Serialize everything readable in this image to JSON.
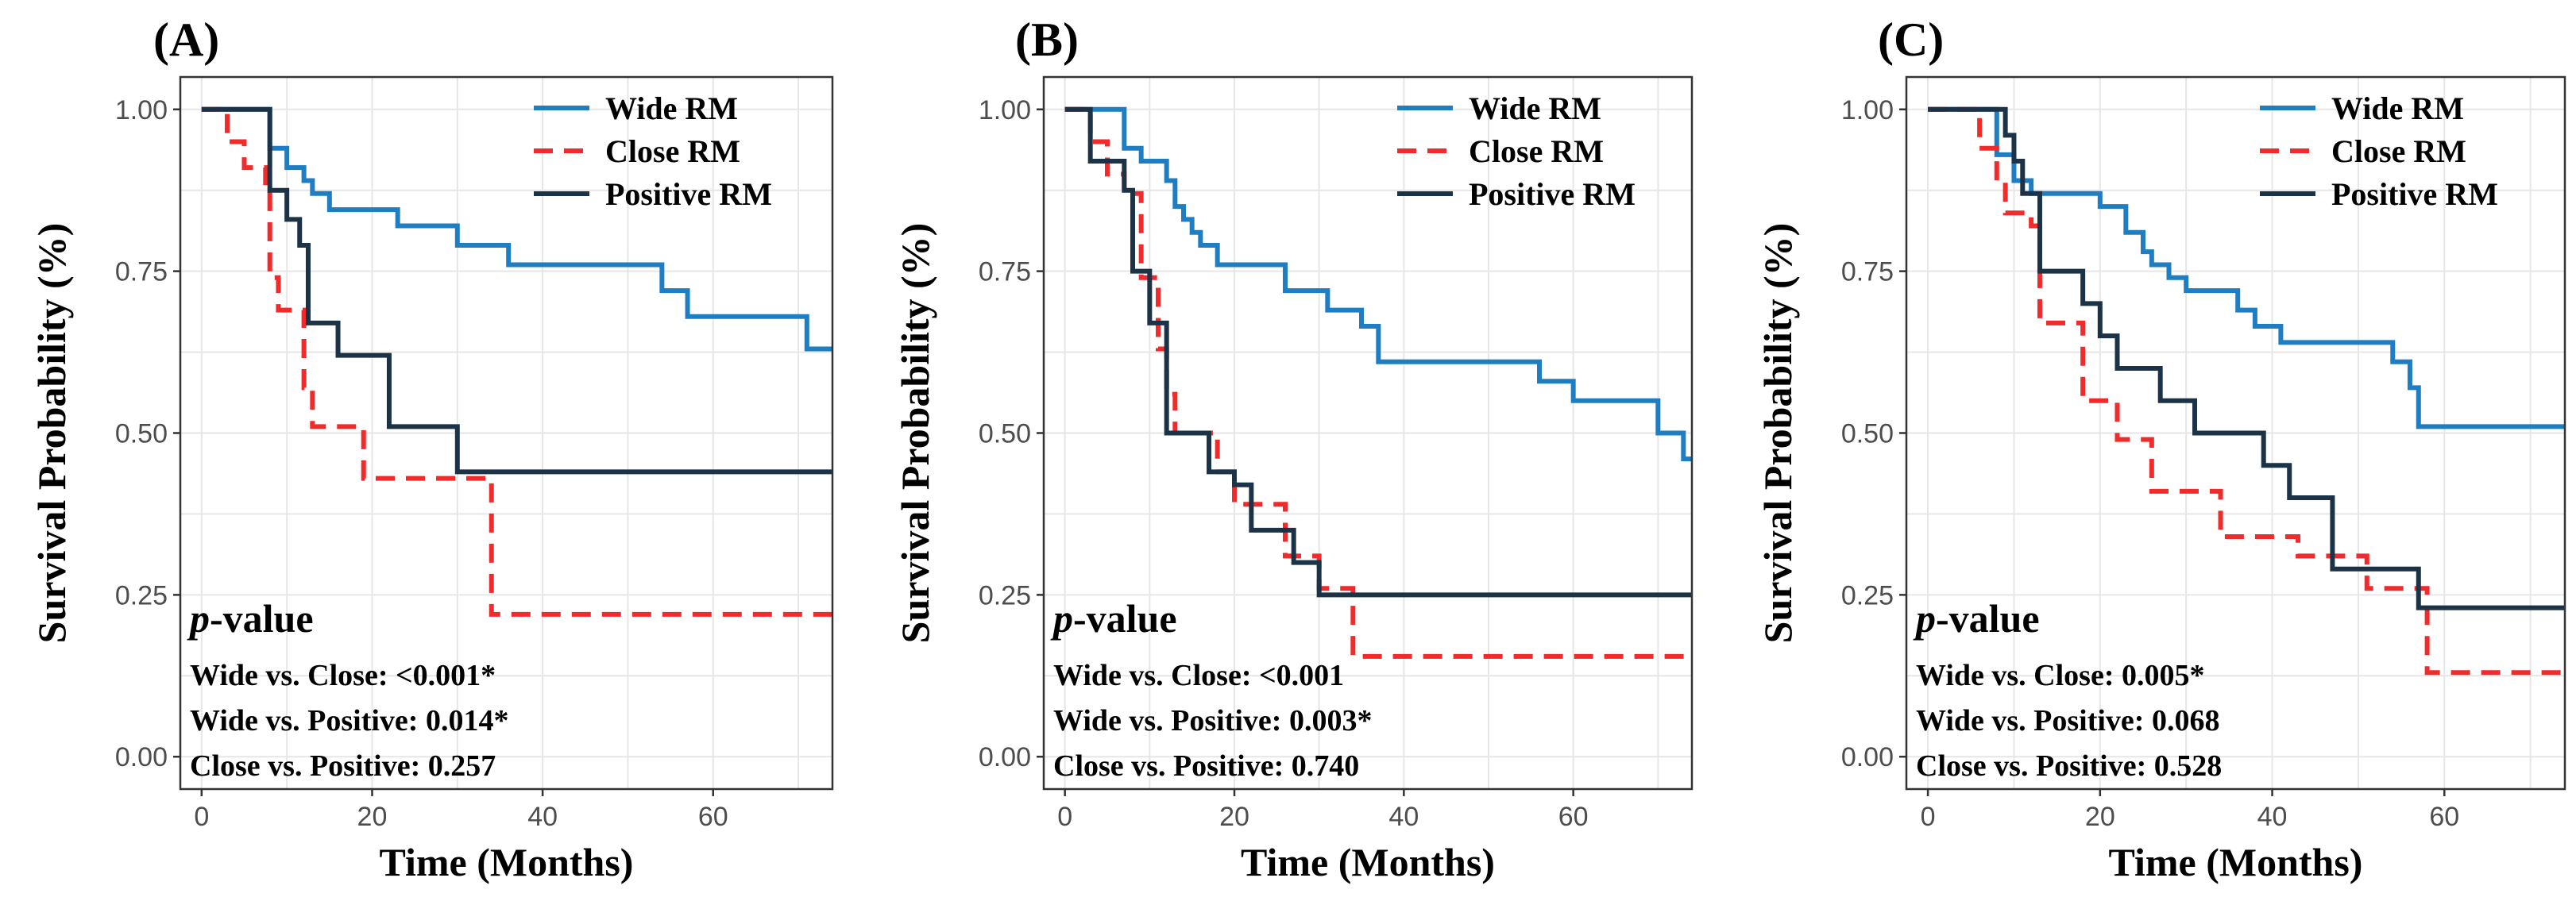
{
  "colors": {
    "wide": "#1f7dc1",
    "close": "#ef2b2b",
    "positive": "#1c3246"
  },
  "chart_data": [
    {
      "type": "line",
      "panel": "(A)",
      "xlabel": "Time (Months)",
      "ylabel": "Survival Probability (%)",
      "xlim": [
        -2.5,
        74
      ],
      "ylim": [
        -0.05,
        1.05
      ],
      "xticks": [
        "0",
        "20",
        "40",
        "60"
      ],
      "yticks": [
        "0.00",
        "0.25",
        "0.50",
        "0.75",
        "1.00"
      ],
      "legend": [
        "Wide RM",
        "Close RM",
        "Positive RM"
      ],
      "pvalue_title": "-value",
      "pvalue_title_italic": "p",
      "pvalues": [
        "Wide vs. Close: <0.001*",
        "Wide vs. Positive: 0.014*",
        "Close vs. Positive: 0.257"
      ],
      "series": [
        {
          "name": "Wide RM",
          "style": "solid",
          "x": [
            0,
            8,
            10,
            12,
            13,
            15,
            23,
            30,
            36,
            54,
            57,
            71,
            74
          ],
          "y": [
            1.0,
            0.94,
            0.91,
            0.89,
            0.87,
            0.845,
            0.82,
            0.79,
            0.76,
            0.72,
            0.68,
            0.63,
            0.63
          ]
        },
        {
          "name": "Close RM",
          "style": "dashed",
          "x": [
            0,
            3,
            5,
            7.5,
            8,
            9,
            12,
            13,
            16,
            19,
            33,
            34,
            74
          ],
          "y": [
            1.0,
            0.95,
            0.91,
            0.88,
            0.74,
            0.69,
            0.57,
            0.51,
            0.51,
            0.43,
            0.43,
            0.22,
            0.22
          ]
        },
        {
          "name": "Positive RM",
          "style": "solid",
          "x": [
            0,
            8,
            10,
            11.5,
            12.5,
            16,
            22,
            30,
            74
          ],
          "y": [
            1.0,
            0.875,
            0.83,
            0.79,
            0.67,
            0.62,
            0.51,
            0.44,
            0.44
          ]
        }
      ]
    },
    {
      "type": "line",
      "panel": "(B)",
      "xlabel": "Time (Months)",
      "ylabel": "Survival Probability (%)",
      "xlim": [
        -2.5,
        74
      ],
      "ylim": [
        -0.05,
        1.05
      ],
      "xticks": [
        "0",
        "20",
        "40",
        "60"
      ],
      "yticks": [
        "0.00",
        "0.25",
        "0.50",
        "0.75",
        "1.00"
      ],
      "legend": [
        "Wide RM",
        "Close RM",
        "Positive RM"
      ],
      "pvalue_title": "-value",
      "pvalue_title_italic": "p",
      "pvalues": [
        "Wide vs. Close: <0.001",
        "Wide vs. Positive: 0.003*",
        "Close vs. Positive: 0.740"
      ],
      "series": [
        {
          "name": "Wide RM",
          "style": "solid",
          "x": [
            0,
            7,
            9,
            12,
            13,
            14,
            15,
            16,
            18,
            26,
            31,
            35,
            37,
            56,
            60,
            70,
            73,
            74
          ],
          "y": [
            1.0,
            0.94,
            0.92,
            0.89,
            0.85,
            0.83,
            0.81,
            0.79,
            0.76,
            0.72,
            0.69,
            0.665,
            0.61,
            0.58,
            0.55,
            0.5,
            0.46,
            0.46
          ]
        },
        {
          "name": "Close RM",
          "style": "dashed",
          "x": [
            0,
            3,
            5,
            7,
            9,
            11,
            12,
            13,
            18,
            20,
            26,
            30,
            34,
            74
          ],
          "y": [
            1.0,
            0.95,
            0.9,
            0.87,
            0.74,
            0.63,
            0.56,
            0.5,
            0.44,
            0.39,
            0.31,
            0.26,
            0.155,
            0.155
          ]
        },
        {
          "name": "Positive RM",
          "style": "solid",
          "x": [
            0,
            3,
            7,
            8,
            10,
            12,
            17,
            20,
            22,
            27,
            30,
            74
          ],
          "y": [
            1.0,
            0.92,
            0.875,
            0.75,
            0.67,
            0.5,
            0.44,
            0.42,
            0.35,
            0.3,
            0.25,
            0.25
          ]
        }
      ]
    },
    {
      "type": "line",
      "panel": "(C)",
      "xlabel": "Time (Months)",
      "ylabel": "Survival Probability (%)",
      "xlim": [
        -2.5,
        74
      ],
      "ylim": [
        -0.05,
        1.05
      ],
      "xticks": [
        "0",
        "20",
        "40",
        "60"
      ],
      "yticks": [
        "0.00",
        "0.25",
        "0.50",
        "0.75",
        "1.00"
      ],
      "legend": [
        "Wide RM",
        "Close RM",
        "Positive RM"
      ],
      "pvalue_title": "-value",
      "pvalue_title_italic": "p",
      "pvalues": [
        "Wide vs. Close: 0.005*",
        "Wide vs. Positive: 0.068",
        "Close vs. Positive: 0.528"
      ],
      "series": [
        {
          "name": "Wide RM",
          "style": "solid",
          "x": [
            0,
            8,
            10,
            12,
            20,
            23,
            25,
            26,
            28,
            30,
            36,
            38,
            41,
            54,
            56,
            57,
            74
          ],
          "y": [
            1.0,
            0.93,
            0.89,
            0.87,
            0.85,
            0.81,
            0.78,
            0.76,
            0.74,
            0.72,
            0.69,
            0.665,
            0.64,
            0.61,
            0.57,
            0.51,
            0.51
          ]
        },
        {
          "name": "Close RM",
          "style": "dashed",
          "x": [
            0,
            6,
            8,
            9,
            12,
            13,
            18,
            22,
            26,
            34,
            43,
            51,
            58,
            74
          ],
          "y": [
            1.0,
            0.94,
            0.89,
            0.84,
            0.82,
            0.67,
            0.55,
            0.49,
            0.41,
            0.34,
            0.31,
            0.26,
            0.13,
            0.13
          ]
        },
        {
          "name": "Positive RM",
          "style": "solid",
          "x": [
            0,
            9,
            10,
            11,
            13,
            18,
            20,
            22,
            27,
            31,
            39,
            42,
            47,
            57,
            74
          ],
          "y": [
            1.0,
            0.96,
            0.92,
            0.87,
            0.75,
            0.7,
            0.65,
            0.6,
            0.55,
            0.5,
            0.45,
            0.4,
            0.29,
            0.23,
            0.23
          ]
        }
      ]
    }
  ]
}
